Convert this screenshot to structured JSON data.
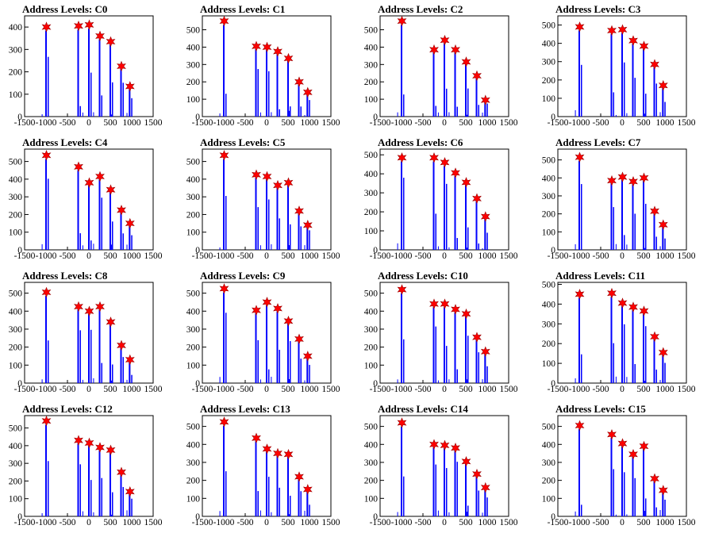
{
  "figure": {
    "panel_title_prefix": "Address Levels: "
  },
  "colors": {
    "histogram": "#0000ff",
    "overflow": "#000000",
    "marker": "#ff0000",
    "axis": "#000000"
  },
  "chart_data": [
    {
      "type": "bar",
      "title": "Address Levels: C0",
      "xlim": [
        -1500,
        1500
      ],
      "ylim": [
        0,
        450
      ],
      "yticks": [
        100,
        200,
        300,
        400
      ],
      "xticks": [
        -1500,
        -1000,
        -500,
        0,
        500,
        1000,
        1500
      ],
      "peaks": [
        {
          "x": -1000,
          "y": 400
        },
        {
          "x": -250,
          "y": 405
        },
        {
          "x": 0,
          "y": 410
        },
        {
          "x": 250,
          "y": 360
        },
        {
          "x": 500,
          "y": 335
        },
        {
          "x": 750,
          "y": 225
        },
        {
          "x": 950,
          "y": 135
        }
      ]
    },
    {
      "type": "bar",
      "title": "Address Levels: C1",
      "xlim": [
        -1500,
        1500
      ],
      "ylim": [
        0,
        580
      ],
      "yticks": [
        100,
        200,
        300,
        400,
        500
      ],
      "xticks": [
        -1500,
        -1000,
        -500,
        0,
        500,
        1000,
        1500
      ],
      "peaks": [
        {
          "x": -1000,
          "y": 550
        },
        {
          "x": -250,
          "y": 405
        },
        {
          "x": 0,
          "y": 400
        },
        {
          "x": 250,
          "y": 375
        },
        {
          "x": 500,
          "y": 335
        },
        {
          "x": 750,
          "y": 200
        },
        {
          "x": 950,
          "y": 140
        }
      ]
    },
    {
      "type": "bar",
      "title": "Address Levels: C2",
      "xlim": [
        -1500,
        1500
      ],
      "ylim": [
        0,
        580
      ],
      "yticks": [
        100,
        200,
        300,
        400,
        500
      ],
      "xticks": [
        -1500,
        -1000,
        -500,
        0,
        500,
        1000,
        1500
      ],
      "peaks": [
        {
          "x": -1000,
          "y": 550
        },
        {
          "x": -250,
          "y": 385
        },
        {
          "x": 0,
          "y": 440
        },
        {
          "x": 250,
          "y": 385
        },
        {
          "x": 500,
          "y": 315
        },
        {
          "x": 750,
          "y": 235
        },
        {
          "x": 950,
          "y": 95
        }
      ]
    },
    {
      "type": "bar",
      "title": "Address Levels: C3",
      "xlim": [
        -1500,
        1500
      ],
      "ylim": [
        0,
        550
      ],
      "yticks": [
        100,
        200,
        300,
        400,
        500
      ],
      "xticks": [
        -1500,
        -1000,
        -500,
        0,
        500,
        1000,
        1500
      ],
      "peaks": [
        {
          "x": -1000,
          "y": 490
        },
        {
          "x": -250,
          "y": 470
        },
        {
          "x": 0,
          "y": 475
        },
        {
          "x": 250,
          "y": 415
        },
        {
          "x": 500,
          "y": 385
        },
        {
          "x": 750,
          "y": 285
        },
        {
          "x": 950,
          "y": 170
        }
      ]
    },
    {
      "type": "bar",
      "title": "Address Levels: C4",
      "xlim": [
        -1500,
        1500
      ],
      "ylim": [
        0,
        570
      ],
      "yticks": [
        100,
        200,
        300,
        400,
        500
      ],
      "xticks": [
        -1500,
        -1000,
        -500,
        0,
        500,
        1000,
        1500
      ],
      "peaks": [
        {
          "x": -1000,
          "y": 535
        },
        {
          "x": -250,
          "y": 470
        },
        {
          "x": 0,
          "y": 380
        },
        {
          "x": 250,
          "y": 415
        },
        {
          "x": 500,
          "y": 340
        },
        {
          "x": 750,
          "y": 225
        },
        {
          "x": 950,
          "y": 150
        }
      ]
    },
    {
      "type": "bar",
      "title": "Address Levels: C5",
      "xlim": [
        -1500,
        1500
      ],
      "ylim": [
        0,
        570
      ],
      "yticks": [
        100,
        200,
        300,
        400,
        500
      ],
      "xticks": [
        -1500,
        -1000,
        -500,
        0,
        500,
        1000,
        1500
      ],
      "peaks": [
        {
          "x": -1000,
          "y": 535
        },
        {
          "x": -250,
          "y": 425
        },
        {
          "x": 0,
          "y": 415
        },
        {
          "x": 250,
          "y": 365
        },
        {
          "x": 500,
          "y": 380
        },
        {
          "x": 750,
          "y": 220
        },
        {
          "x": 950,
          "y": 140
        }
      ]
    },
    {
      "type": "bar",
      "title": "Address Levels: C6",
      "xlim": [
        -1500,
        1500
      ],
      "ylim": [
        0,
        530
      ],
      "yticks": [
        100,
        200,
        300,
        400,
        500
      ],
      "xticks": [
        -1500,
        -1000,
        -500,
        0,
        500,
        1000,
        1500
      ],
      "peaks": [
        {
          "x": -1000,
          "y": 485
        },
        {
          "x": -250,
          "y": 485
        },
        {
          "x": 0,
          "y": 460
        },
        {
          "x": 250,
          "y": 405
        },
        {
          "x": 500,
          "y": 355
        },
        {
          "x": 750,
          "y": 270
        },
        {
          "x": 950,
          "y": 175
        }
      ]
    },
    {
      "type": "bar",
      "title": "Address Levels: C7",
      "xlim": [
        -1500,
        1500
      ],
      "ylim": [
        0,
        560
      ],
      "yticks": [
        100,
        200,
        300,
        400,
        500
      ],
      "xticks": [
        -1500,
        -1000,
        -500,
        0,
        500,
        1000,
        1500
      ],
      "peaks": [
        {
          "x": -1000,
          "y": 515
        },
        {
          "x": -250,
          "y": 385
        },
        {
          "x": 0,
          "y": 405
        },
        {
          "x": 250,
          "y": 380
        },
        {
          "x": 500,
          "y": 400
        },
        {
          "x": 750,
          "y": 215
        },
        {
          "x": 950,
          "y": 140
        }
      ]
    },
    {
      "type": "bar",
      "title": "Address Levels: C8",
      "xlim": [
        -1500,
        1500
      ],
      "ylim": [
        0,
        560
      ],
      "yticks": [
        100,
        200,
        300,
        400,
        500
      ],
      "xticks": [
        -1500,
        -1000,
        -500,
        0,
        500,
        1000,
        1500
      ],
      "peaks": [
        {
          "x": -1000,
          "y": 505
        },
        {
          "x": -250,
          "y": 425
        },
        {
          "x": 0,
          "y": 400
        },
        {
          "x": 250,
          "y": 425
        },
        {
          "x": 500,
          "y": 340
        },
        {
          "x": 750,
          "y": 210
        },
        {
          "x": 950,
          "y": 130
        }
      ]
    },
    {
      "type": "bar",
      "title": "Address Levels: C9",
      "xlim": [
        -1500,
        1500
      ],
      "ylim": [
        0,
        560
      ],
      "yticks": [
        100,
        200,
        300,
        400,
        500
      ],
      "xticks": [
        -1500,
        -1000,
        -500,
        0,
        500,
        1000,
        1500
      ],
      "peaks": [
        {
          "x": -1000,
          "y": 525
        },
        {
          "x": -250,
          "y": 405
        },
        {
          "x": 0,
          "y": 450
        },
        {
          "x": 250,
          "y": 415
        },
        {
          "x": 500,
          "y": 345
        },
        {
          "x": 750,
          "y": 245
        },
        {
          "x": 950,
          "y": 150
        }
      ]
    },
    {
      "type": "bar",
      "title": "Address Levels: C10",
      "xlim": [
        -1500,
        1500
      ],
      "ylim": [
        0,
        560
      ],
      "yticks": [
        100,
        200,
        300,
        400,
        500
      ],
      "xticks": [
        -1500,
        -1000,
        -500,
        0,
        500,
        1000,
        1500
      ],
      "peaks": [
        {
          "x": -1000,
          "y": 520
        },
        {
          "x": -250,
          "y": 440
        },
        {
          "x": 0,
          "y": 440
        },
        {
          "x": 250,
          "y": 410
        },
        {
          "x": 500,
          "y": 385
        },
        {
          "x": 750,
          "y": 255
        },
        {
          "x": 950,
          "y": 175
        }
      ]
    },
    {
      "type": "bar",
      "title": "Address Levels: C11",
      "xlim": [
        -1500,
        1500
      ],
      "ylim": [
        0,
        510
      ],
      "yticks": [
        100,
        200,
        300,
        400,
        500
      ],
      "xticks": [
        -1500,
        -1000,
        -500,
        0,
        500,
        1000,
        1500
      ],
      "peaks": [
        {
          "x": -1000,
          "y": 450
        },
        {
          "x": -250,
          "y": 455
        },
        {
          "x": 0,
          "y": 405
        },
        {
          "x": 250,
          "y": 385
        },
        {
          "x": 500,
          "y": 365
        },
        {
          "x": 750,
          "y": 235
        },
        {
          "x": 950,
          "y": 155
        }
      ]
    },
    {
      "type": "bar",
      "title": "Address Levels: C12",
      "xlim": [
        -1500,
        1500
      ],
      "ylim": [
        0,
        570
      ],
      "yticks": [
        100,
        200,
        300,
        400,
        500
      ],
      "xticks": [
        -1500,
        -1000,
        -500,
        0,
        500,
        1000,
        1500
      ],
      "peaks": [
        {
          "x": -1000,
          "y": 540
        },
        {
          "x": -250,
          "y": 430
        },
        {
          "x": 0,
          "y": 415
        },
        {
          "x": 250,
          "y": 390
        },
        {
          "x": 500,
          "y": 375
        },
        {
          "x": 750,
          "y": 250
        },
        {
          "x": 950,
          "y": 140
        }
      ]
    },
    {
      "type": "bar",
      "title": "Address Levels: C13",
      "xlim": [
        -1500,
        1500
      ],
      "ylim": [
        0,
        560
      ],
      "yticks": [
        100,
        200,
        300,
        400,
        500
      ],
      "xticks": [
        -1500,
        -1000,
        -500,
        0,
        500,
        1000,
        1500
      ],
      "peaks": [
        {
          "x": -1000,
          "y": 525
        },
        {
          "x": -250,
          "y": 435
        },
        {
          "x": 0,
          "y": 375
        },
        {
          "x": 250,
          "y": 350
        },
        {
          "x": 500,
          "y": 345
        },
        {
          "x": 750,
          "y": 220
        },
        {
          "x": 950,
          "y": 150
        }
      ]
    },
    {
      "type": "bar",
      "title": "Address Levels: C14",
      "xlim": [
        -1500,
        1500
      ],
      "ylim": [
        0,
        560
      ],
      "yticks": [
        100,
        200,
        300,
        400,
        500
      ],
      "xticks": [
        -1500,
        -1000,
        -500,
        0,
        500,
        1000,
        1500
      ],
      "peaks": [
        {
          "x": -1000,
          "y": 520
        },
        {
          "x": -250,
          "y": 400
        },
        {
          "x": 0,
          "y": 395
        },
        {
          "x": 250,
          "y": 380
        },
        {
          "x": 500,
          "y": 305
        },
        {
          "x": 750,
          "y": 235
        },
        {
          "x": 950,
          "y": 160
        }
      ]
    },
    {
      "type": "bar",
      "title": "Address Levels: C15",
      "xlim": [
        -1500,
        1500
      ],
      "ylim": [
        0,
        560
      ],
      "yticks": [
        100,
        200,
        300,
        400,
        500
      ],
      "xticks": [
        -1500,
        -1000,
        -500,
        0,
        500,
        1000,
        1500
      ],
      "peaks": [
        {
          "x": -1000,
          "y": 505
        },
        {
          "x": -250,
          "y": 455
        },
        {
          "x": 0,
          "y": 405
        },
        {
          "x": 250,
          "y": 345
        },
        {
          "x": 500,
          "y": 390
        },
        {
          "x": 750,
          "y": 210
        },
        {
          "x": 950,
          "y": 145
        }
      ]
    }
  ]
}
